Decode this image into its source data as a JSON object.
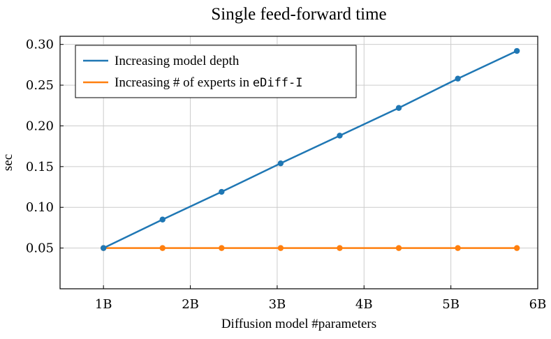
{
  "chart_data": {
    "type": "line",
    "title": "Single feed-forward time",
    "xlabel": "Diffusion model #parameters",
    "ylabel": "sec",
    "xlim": [
      0.5,
      6
    ],
    "ylim": [
      0.0,
      0.31
    ],
    "xticks": [
      1,
      2,
      3,
      4,
      5,
      6
    ],
    "xtick_labels": [
      "1B",
      "2B",
      "3B",
      "4B",
      "5B",
      "6B"
    ],
    "yticks": [
      0.05,
      0.1,
      0.15,
      0.2,
      0.25,
      0.3
    ],
    "ytick_labels": [
      "0.05",
      "0.10",
      "0.15",
      "0.20",
      "0.25",
      "0.30"
    ],
    "grid": true,
    "legend_position": "top-left",
    "series": [
      {
        "name": "Increasing model depth",
        "color": "#1f77b4",
        "x": [
          1.0,
          1.68,
          2.36,
          3.04,
          3.72,
          4.4,
          5.08,
          5.76
        ],
        "y": [
          0.05,
          0.085,
          0.119,
          0.154,
          0.188,
          0.222,
          0.258,
          0.292
        ]
      },
      {
        "name_prefix": "Increasing # of experts in ",
        "name_code": "eDiff-I",
        "color": "#ff7f0e",
        "x": [
          1.0,
          1.68,
          2.36,
          3.04,
          3.72,
          4.4,
          5.08,
          5.76
        ],
        "y": [
          0.05,
          0.05,
          0.05,
          0.05,
          0.05,
          0.05,
          0.05,
          0.05
        ]
      }
    ]
  }
}
